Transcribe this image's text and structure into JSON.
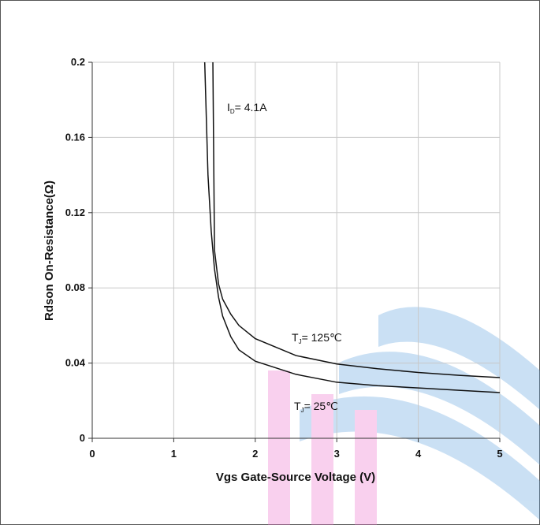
{
  "chart_data": {
    "type": "line",
    "xlabel": "Vgs Gate-Source Voltage (V)",
    "ylabel": "Rdson On-Resistance(Ω)",
    "xlim": [
      0,
      5
    ],
    "xticks": [
      0,
      1,
      2,
      3,
      4,
      5
    ],
    "ylim": [
      0,
      0.2
    ],
    "yticks": [
      0,
      0.04,
      0.08,
      0.12,
      0.16,
      0.2
    ],
    "grid": true,
    "series": [
      {
        "color": "#111111",
        "x": [
          1.48,
          1.5,
          1.55,
          1.6,
          1.7,
          1.8,
          2,
          2.5,
          3,
          3.5,
          4,
          4.5,
          5
        ],
        "values": [
          0.2,
          0.1,
          0.082,
          0.074,
          0.066,
          0.06,
          0.053,
          0.044,
          0.0395,
          0.037,
          0.035,
          0.0335,
          0.0323
        ]
      },
      {
        "color": "#111111",
        "x": [
          1.38,
          1.42,
          1.46,
          1.5,
          1.55,
          1.6,
          1.7,
          1.8,
          2,
          2.5,
          3,
          3.5,
          4,
          4.5,
          5
        ],
        "values": [
          0.2,
          0.14,
          0.11,
          0.09,
          0.075,
          0.065,
          0.054,
          0.047,
          0.041,
          0.034,
          0.0298,
          0.028,
          0.0268,
          0.0255,
          0.0243
        ]
      }
    ],
    "annotations": [
      {
        "main": "I",
        "sub": "D",
        "rest": "= 4.1A"
      },
      {
        "main": "T",
        "sub": "J",
        "rest": "= 125℃"
      },
      {
        "main": "T",
        "sub": "J",
        "rest": "= 25℃"
      }
    ]
  }
}
